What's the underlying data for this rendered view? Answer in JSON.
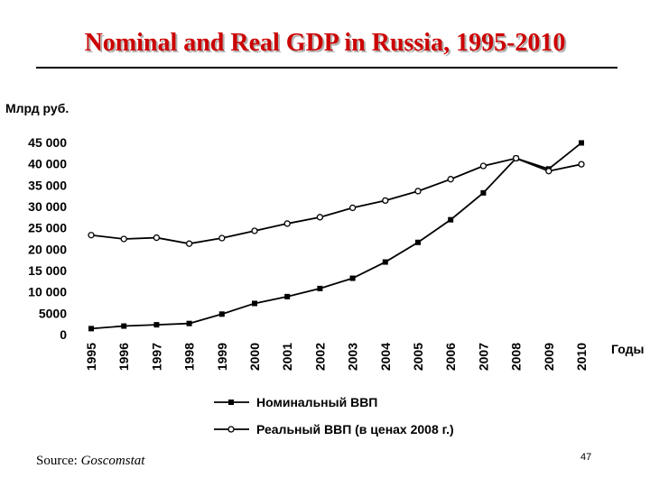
{
  "slide": {
    "title": "Nominal and Real GDP in Russia, 1995-2010",
    "source_label": "Source:",
    "source_name": "Goscomstat",
    "page_number": "47"
  },
  "chart_data": {
    "type": "line",
    "title": "Nominal and Real GDP in Russia, 1995-2010",
    "ylabel": "Млрд руб.",
    "xlabel": "Годы",
    "ylim": [
      0,
      45000
    ],
    "yticks": [
      0,
      5000,
      10000,
      15000,
      20000,
      25000,
      30000,
      35000,
      40000,
      45000
    ],
    "ytick_labels": [
      "0",
      "5000",
      "10 000",
      "15 000",
      "20 000",
      "25 000",
      "30 000",
      "35 000",
      "40 000",
      "45 000"
    ],
    "categories": [
      "1995",
      "1996",
      "1997",
      "1998",
      "1999",
      "2000",
      "2001",
      "2002",
      "2003",
      "2004",
      "2005",
      "2006",
      "2007",
      "2008",
      "2009",
      "2010"
    ],
    "grid": false,
    "legend_position": "bottom",
    "series": [
      {
        "name": "Номинальный ВВП",
        "marker": "square",
        "values": [
          1400,
          2000,
          2300,
          2600,
          4800,
          7300,
          8900,
          10800,
          13200,
          17000,
          21600,
          26900,
          33200,
          41300,
          38800,
          44900
        ]
      },
      {
        "name": "Реальный ВВП (в ценах 2008 г.)",
        "marker": "circle",
        "values": [
          23300,
          22400,
          22700,
          21300,
          22600,
          24300,
          26000,
          27500,
          29700,
          31400,
          33600,
          36400,
          39500,
          41300,
          38300,
          39900
        ]
      }
    ]
  }
}
